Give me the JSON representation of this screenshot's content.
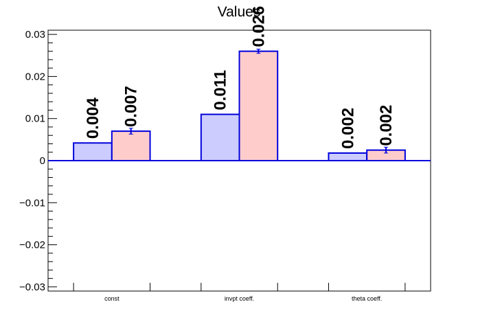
{
  "chart_data": {
    "type": "bar",
    "title": "Values",
    "xlabel": "",
    "ylabel": "",
    "categories": [
      "const",
      "invpt coeff.",
      "theta coeff."
    ],
    "ylim": [
      -0.031,
      0.031
    ],
    "yticks": [
      -0.03,
      -0.02,
      -0.01,
      0,
      0.01,
      0.02,
      0.03
    ],
    "ytick_labels": [
      "−0.03",
      "−0.02",
      "−0.01",
      "0",
      "0.01",
      "0.02",
      "0.03"
    ],
    "grid": false,
    "series": [
      {
        "values": [
          0.0042,
          0.011,
          0.0018
        ],
        "errors": [
          0,
          0,
          0
        ],
        "labels": [
          "0.004",
          "0.011",
          "0.002"
        ],
        "fill": "#ccccff",
        "stroke": "#0000dd"
      },
      {
        "values": [
          0.007,
          0.026,
          0.0025
        ],
        "errors": [
          0.0007,
          0.0005,
          0.0007
        ],
        "labels": [
          "0.007",
          "0.026",
          "0.002"
        ],
        "fill": "#ffcccc",
        "stroke": "#0000dd"
      }
    ]
  }
}
